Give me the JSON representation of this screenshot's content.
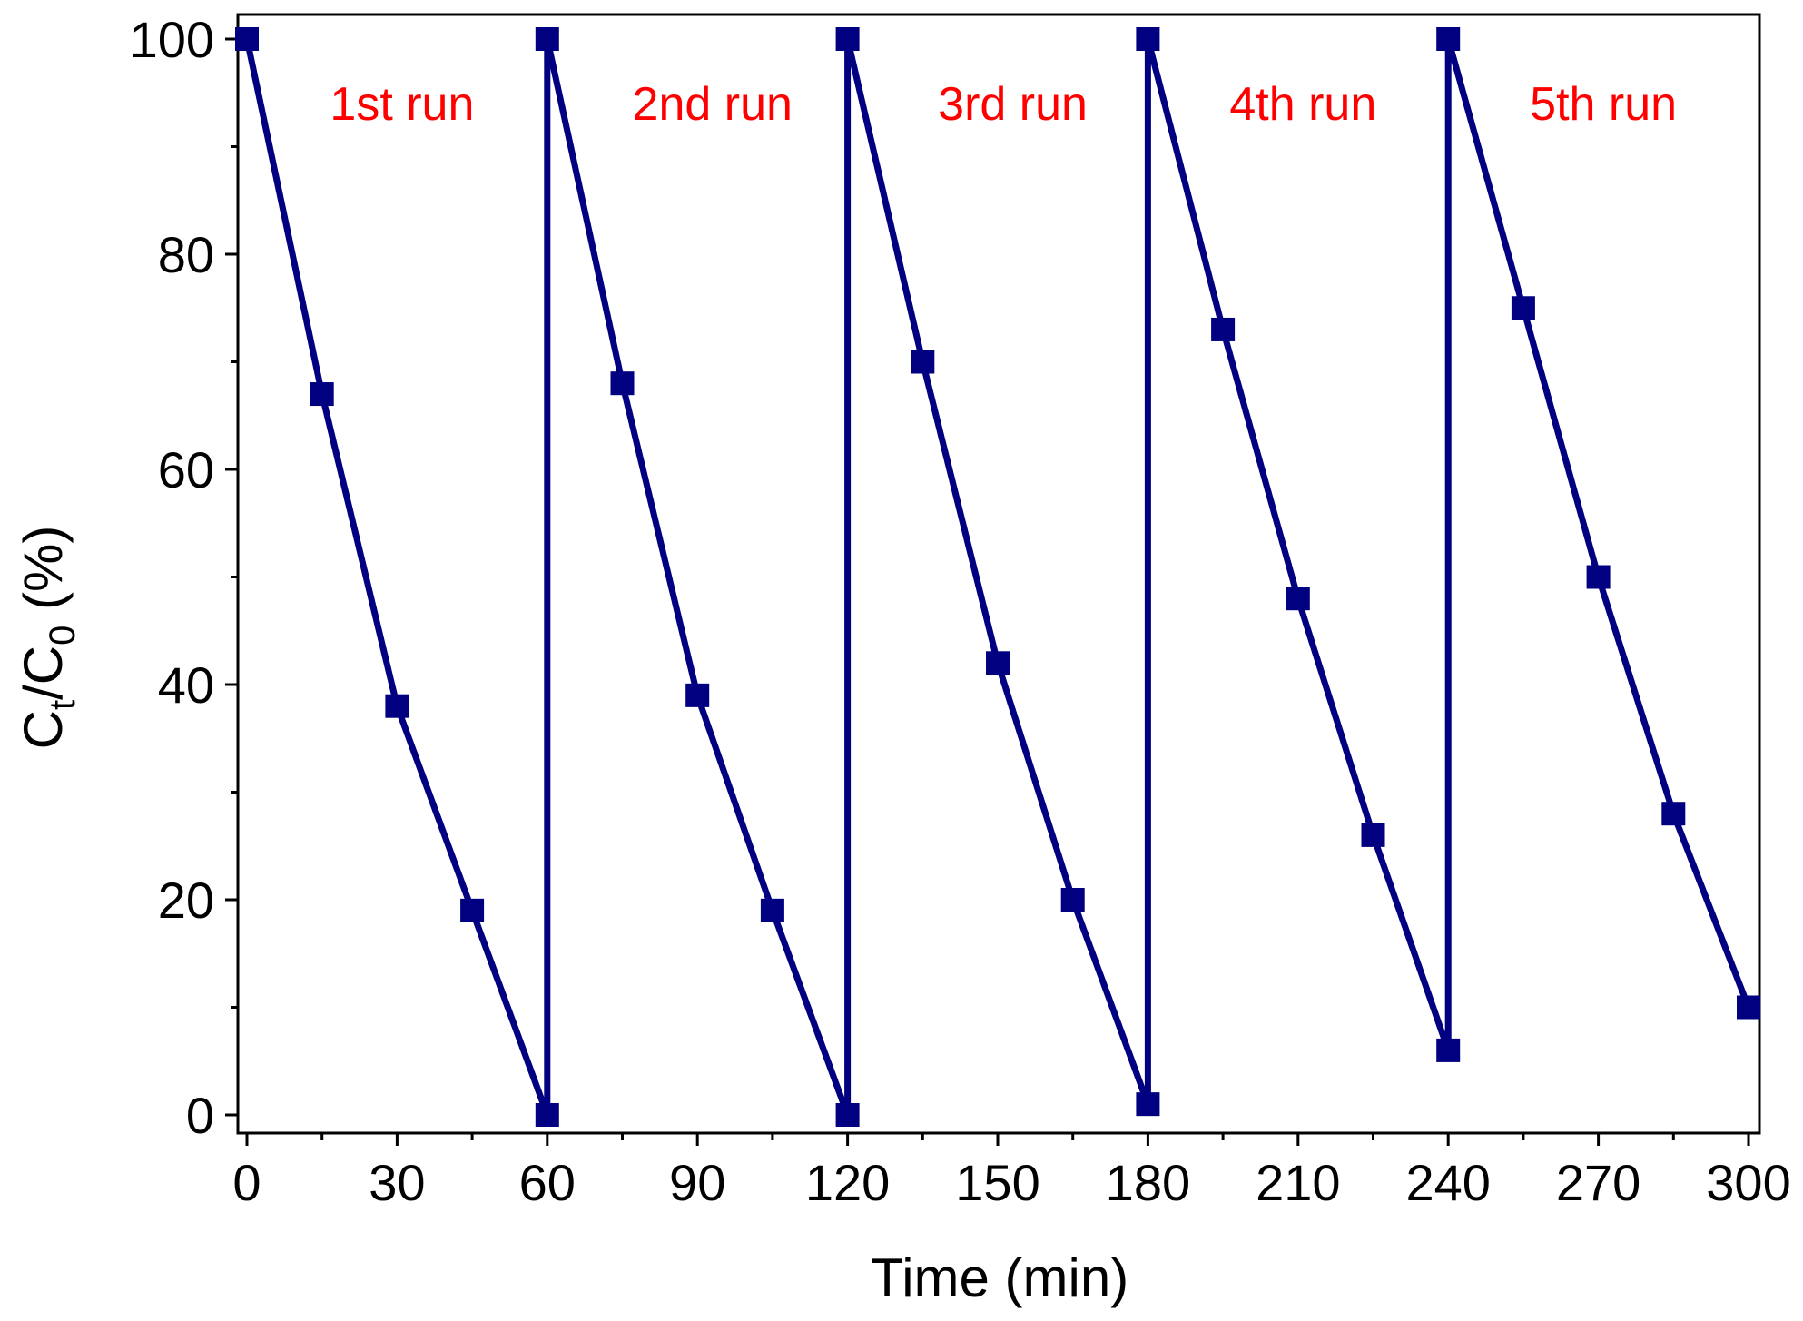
{
  "chart_data": {
    "type": "line",
    "xlabel": "Time (min)",
    "ylabel": {
      "main": "C",
      "sub1": "t",
      "mid": "/C",
      "sub2": "0",
      "tail": " (%)"
    },
    "xlim": [
      0,
      300
    ],
    "ylim": [
      0,
      100
    ],
    "xticks": [
      "0",
      "30",
      "60",
      "90",
      "120",
      "150",
      "180",
      "210",
      "240",
      "270",
      "300"
    ],
    "yticks": [
      "0",
      "20",
      "40",
      "60",
      "80",
      "100"
    ],
    "grid": false,
    "series": [
      {
        "color": "#000080",
        "x": [
          0,
          15,
          30,
          45,
          60,
          60,
          75,
          90,
          105,
          120,
          120,
          135,
          150,
          165,
          180,
          180,
          195,
          210,
          225,
          240,
          240,
          255,
          270,
          285,
          300
        ],
        "y": [
          100,
          67,
          38,
          19,
          0,
          100,
          68,
          39,
          19,
          0,
          100,
          70,
          42,
          20,
          1,
          100,
          73,
          48,
          26,
          6,
          100,
          75,
          50,
          28,
          10
        ]
      }
    ],
    "annotations": [
      {
        "text": "1st run",
        "x": 31,
        "y": 94,
        "color": "#ff0000"
      },
      {
        "text": "2nd run",
        "x": 93,
        "y": 94,
        "color": "#ff0000"
      },
      {
        "text": "3rd run",
        "x": 153,
        "y": 94,
        "color": "#ff0000"
      },
      {
        "text": "4th run",
        "x": 211,
        "y": 94,
        "color": "#ff0000"
      },
      {
        "text": "5th run",
        "x": 271,
        "y": 94,
        "color": "#ff0000"
      }
    ]
  }
}
